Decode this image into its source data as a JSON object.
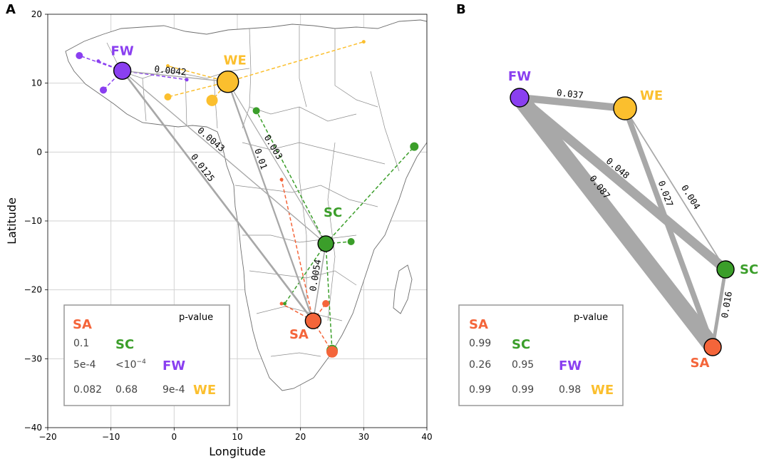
{
  "panels": {
    "a": "A",
    "b": "B"
  },
  "colors": {
    "SA": "#f4653a",
    "SC": "#3b9e2a",
    "FW": "#8a3ff0",
    "WE": "#fbbf2e",
    "edge": "#a8a8a8"
  },
  "panel_a": {
    "xlabel": "Longitude",
    "ylabel": "Latitude",
    "xlim": [
      -20,
      40
    ],
    "ylim": [
      -40,
      20
    ],
    "xticks": [
      "−20",
      "−10",
      "0",
      "10",
      "20",
      "30",
      "40"
    ],
    "yticks": [
      "20",
      "10",
      "0",
      "−10",
      "−20",
      "−30",
      "−40"
    ],
    "nodes": [
      {
        "id": "FW",
        "label": "FW",
        "lon": -8.2,
        "lat": 11.8,
        "size": "medium"
      },
      {
        "id": "WE",
        "label": "WE",
        "lon": 8.5,
        "lat": 10.2,
        "size": "large"
      },
      {
        "id": "SC",
        "label": "SC",
        "lon": 24.0,
        "lat": -13.3,
        "size": "small"
      },
      {
        "id": "SA",
        "label": "SA",
        "lon": 22.0,
        "lat": -24.5,
        "size": "small"
      }
    ],
    "edge_labels": [
      {
        "text": "0.0042"
      },
      {
        "text": "0.0043"
      },
      {
        "text": "0.003"
      },
      {
        "text": "0.01"
      },
      {
        "text": "0.0125"
      },
      {
        "text": "0.0054"
      }
    ],
    "edges": [
      {
        "a": "FW",
        "b": "WE",
        "weight": 0.0042
      },
      {
        "a": "FW",
        "b": "SC",
        "weight": 0.0043
      },
      {
        "a": "WE",
        "b": "SC",
        "weight": 0.003
      },
      {
        "a": "WE",
        "b": "SA",
        "weight": 0.01
      },
      {
        "a": "FW",
        "b": "SA",
        "weight": 0.0125
      },
      {
        "a": "SC",
        "b": "SA",
        "weight": 0.0054
      }
    ],
    "samples": [
      {
        "pop": "FW",
        "lon": -15.0,
        "lat": 14.0,
        "dot": true
      },
      {
        "pop": "FW",
        "lon": -11.2,
        "lat": 9.0,
        "dot": true
      },
      {
        "pop": "FW",
        "lon": -12.0,
        "lat": 13.2,
        "dot": false
      },
      {
        "pop": "FW",
        "lon": 2.0,
        "lat": 10.5,
        "dot": false
      },
      {
        "pop": "WE",
        "lon": 6.0,
        "lat": 7.5,
        "dot": true
      },
      {
        "pop": "WE",
        "lon": -1.0,
        "lat": 8.0,
        "dot": true
      },
      {
        "pop": "WE",
        "lon": -1.0,
        "lat": 12.5,
        "dot": false
      },
      {
        "pop": "WE",
        "lon": 30.0,
        "lat": 16.0,
        "dot": false
      },
      {
        "pop": "SC",
        "lon": 38.0,
        "lat": 0.8,
        "dot": true
      },
      {
        "pop": "SC",
        "lon": 13.0,
        "lat": 6.0,
        "dot": true
      },
      {
        "pop": "SC",
        "lon": 28.0,
        "lat": -13.0,
        "dot": true
      },
      {
        "pop": "SC",
        "lon": 25.0,
        "lat": -28.8,
        "dot": true
      },
      {
        "pop": "SC",
        "lon": 17.5,
        "lat": -22.0,
        "dot": false
      },
      {
        "pop": "SA",
        "lon": 24.0,
        "lat": -22.0,
        "dot": true
      },
      {
        "pop": "SA",
        "lon": 25.0,
        "lat": -29.0,
        "dot": true
      },
      {
        "pop": "SA",
        "lon": 17.0,
        "lat": -22.0,
        "dot": false
      },
      {
        "pop": "SA",
        "lon": 17.0,
        "lat": -4.0,
        "dot": false
      }
    ],
    "matrix": {
      "pvalue_label": "p-value",
      "row_codes": [
        "SA",
        "SC",
        "FW",
        "WE"
      ],
      "values": [
        [
          "0.1"
        ],
        [
          "5e-4",
          "<10"
        ],
        [
          "0.082",
          "0.68",
          "9e-4"
        ]
      ],
      "exponent": "−4"
    }
  },
  "panel_b": {
    "nodes": [
      {
        "id": "FW",
        "label": "FW"
      },
      {
        "id": "WE",
        "label": "WE"
      },
      {
        "id": "SC",
        "label": "SC"
      },
      {
        "id": "SA",
        "label": "SA"
      }
    ],
    "edges": [
      {
        "a": "FW",
        "b": "WE",
        "weight": 0.037,
        "text": "0.037"
      },
      {
        "a": "FW",
        "b": "SC",
        "weight": 0.048,
        "text": "0.048"
      },
      {
        "a": "FW",
        "b": "SA",
        "weight": 0.087,
        "text": "0.087"
      },
      {
        "a": "WE",
        "b": "SC",
        "weight": 0.004,
        "text": "0.004"
      },
      {
        "a": "WE",
        "b": "SA",
        "weight": 0.027,
        "text": "0.027"
      },
      {
        "a": "SC",
        "b": "SA",
        "weight": 0.016,
        "text": "0.016"
      }
    ],
    "matrix": {
      "pvalue_label": "p-value",
      "row_codes": [
        "SA",
        "SC",
        "FW",
        "WE"
      ],
      "values": [
        [
          "0.99"
        ],
        [
          "0.26",
          "0.95"
        ],
        [
          "0.99",
          "0.99",
          "0.98"
        ]
      ]
    }
  }
}
